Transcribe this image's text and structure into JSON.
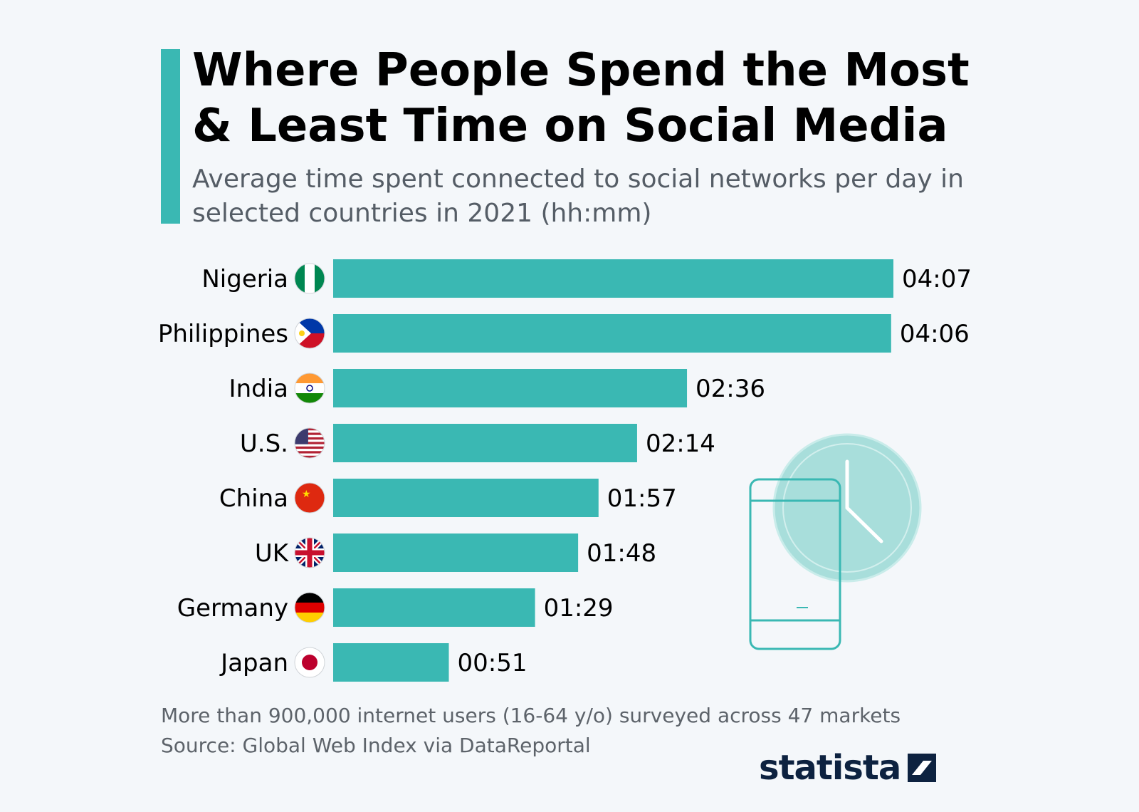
{
  "header": {
    "title": "Where People Spend the Most & Least Time on Social Media",
    "subtitle": "Average time spent connected to social networks per day in selected countries in 2021 (hh:mm)"
  },
  "colors": {
    "accent": "#3ab8b3",
    "background": "#f4f7fa",
    "brand": "#0d2240"
  },
  "chart_data": {
    "type": "bar",
    "orientation": "horizontal",
    "title": "Where People Spend the Most & Least Time on Social Media",
    "subtitle": "Average time spent connected to social networks per day in selected countries in 2021 (hh:mm)",
    "unit": "minutes per day",
    "categories": [
      "Nigeria",
      "Philippines",
      "India",
      "U.S.",
      "China",
      "UK",
      "Germany",
      "Japan"
    ],
    "values": [
      247,
      246,
      156,
      134,
      117,
      108,
      89,
      51
    ],
    "labels": [
      "04:07",
      "04:06",
      "02:36",
      "02:14",
      "01:57",
      "01:48",
      "01:29",
      "00:51"
    ],
    "flags": [
      "nigeria-flag-icon",
      "philippines-flag-icon",
      "india-flag-icon",
      "us-flag-icon",
      "china-flag-icon",
      "uk-flag-icon",
      "germany-flag-icon",
      "japan-flag-icon"
    ],
    "xlim": [
      0,
      247
    ],
    "grid": false,
    "legend": "none"
  },
  "footer": {
    "note": "More than 900,000 internet users (16-64 y/o) surveyed across 47 markets",
    "source": "Source: Global Web Index via DataReportal",
    "brand": "statista"
  }
}
